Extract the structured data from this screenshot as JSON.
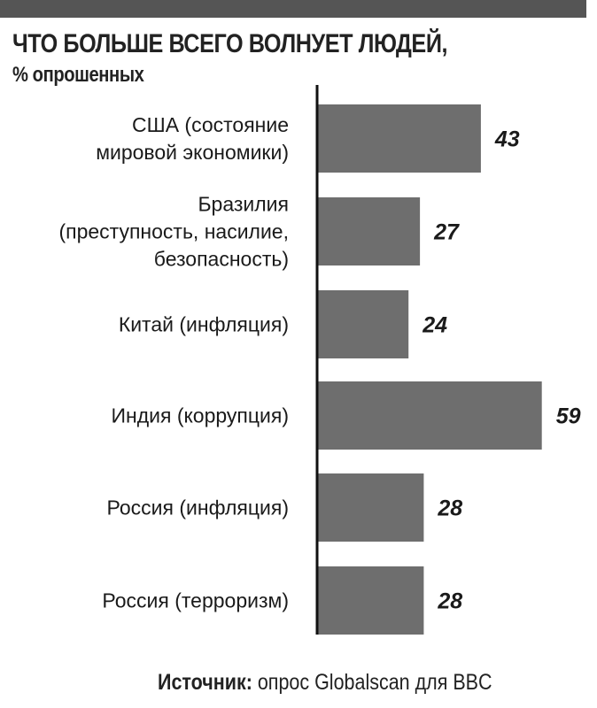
{
  "chart_data": {
    "type": "bar",
    "orientation": "horizontal",
    "title": "ЧТО БОЛЬШЕ ВСЕГО ВОЛНУЕТ ЛЮДЕЙ,",
    "subtitle": "% опрошенных",
    "categories": [
      [
        "США (состояние",
        "мировой экономики)"
      ],
      [
        "Бразилия",
        "(преступность, насилие,",
        "безопасность)"
      ],
      [
        "Китай (инфляция)"
      ],
      [
        "Индия (коррупция)"
      ],
      [
        "Россия (инфляция)"
      ],
      [
        "Россия (терроризм)"
      ]
    ],
    "values": [
      43,
      27,
      24,
      59,
      28,
      28
    ],
    "xlim": [
      0,
      60
    ],
    "grid": false,
    "bar_color": "#6e6e6e",
    "axis_color": "#111111"
  },
  "source": {
    "label": "Источник:",
    "text": " опрос Globalscan для BBC"
  }
}
